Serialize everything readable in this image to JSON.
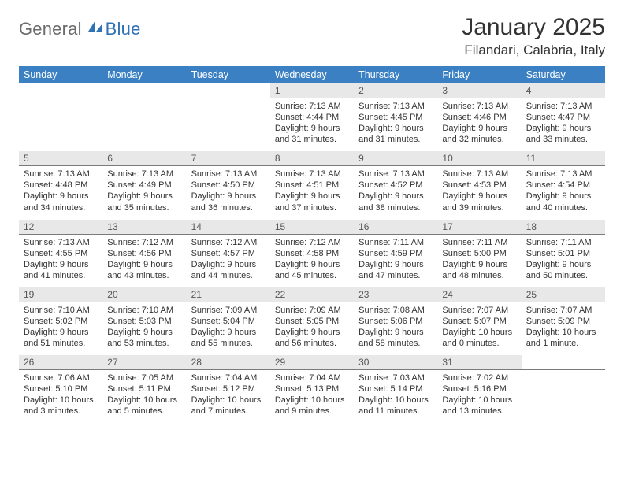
{
  "logo": {
    "general": "General",
    "blue": "Blue"
  },
  "title": "January 2025",
  "location": "Filandari, Calabria, Italy",
  "colors": {
    "header_blue": "#3a80c3",
    "daynum_bg": "#e8e8e8",
    "text": "#333333",
    "logo_gray": "#6b6b6b",
    "logo_blue": "#2f72b6",
    "divider": "#7a7a7a"
  },
  "day_names": [
    "Sunday",
    "Monday",
    "Tuesday",
    "Wednesday",
    "Thursday",
    "Friday",
    "Saturday"
  ],
  "weeks": [
    [
      null,
      null,
      null,
      {
        "n": "1",
        "sr": "Sunrise: 7:13 AM",
        "ss": "Sunset: 4:44 PM",
        "dl": "Daylight: 9 hours and 31 minutes."
      },
      {
        "n": "2",
        "sr": "Sunrise: 7:13 AM",
        "ss": "Sunset: 4:45 PM",
        "dl": "Daylight: 9 hours and 31 minutes."
      },
      {
        "n": "3",
        "sr": "Sunrise: 7:13 AM",
        "ss": "Sunset: 4:46 PM",
        "dl": "Daylight: 9 hours and 32 minutes."
      },
      {
        "n": "4",
        "sr": "Sunrise: 7:13 AM",
        "ss": "Sunset: 4:47 PM",
        "dl": "Daylight: 9 hours and 33 minutes."
      }
    ],
    [
      {
        "n": "5",
        "sr": "Sunrise: 7:13 AM",
        "ss": "Sunset: 4:48 PM",
        "dl": "Daylight: 9 hours and 34 minutes."
      },
      {
        "n": "6",
        "sr": "Sunrise: 7:13 AM",
        "ss": "Sunset: 4:49 PM",
        "dl": "Daylight: 9 hours and 35 minutes."
      },
      {
        "n": "7",
        "sr": "Sunrise: 7:13 AM",
        "ss": "Sunset: 4:50 PM",
        "dl": "Daylight: 9 hours and 36 minutes."
      },
      {
        "n": "8",
        "sr": "Sunrise: 7:13 AM",
        "ss": "Sunset: 4:51 PM",
        "dl": "Daylight: 9 hours and 37 minutes."
      },
      {
        "n": "9",
        "sr": "Sunrise: 7:13 AM",
        "ss": "Sunset: 4:52 PM",
        "dl": "Daylight: 9 hours and 38 minutes."
      },
      {
        "n": "10",
        "sr": "Sunrise: 7:13 AM",
        "ss": "Sunset: 4:53 PM",
        "dl": "Daylight: 9 hours and 39 minutes."
      },
      {
        "n": "11",
        "sr": "Sunrise: 7:13 AM",
        "ss": "Sunset: 4:54 PM",
        "dl": "Daylight: 9 hours and 40 minutes."
      }
    ],
    [
      {
        "n": "12",
        "sr": "Sunrise: 7:13 AM",
        "ss": "Sunset: 4:55 PM",
        "dl": "Daylight: 9 hours and 41 minutes."
      },
      {
        "n": "13",
        "sr": "Sunrise: 7:12 AM",
        "ss": "Sunset: 4:56 PM",
        "dl": "Daylight: 9 hours and 43 minutes."
      },
      {
        "n": "14",
        "sr": "Sunrise: 7:12 AM",
        "ss": "Sunset: 4:57 PM",
        "dl": "Daylight: 9 hours and 44 minutes."
      },
      {
        "n": "15",
        "sr": "Sunrise: 7:12 AM",
        "ss": "Sunset: 4:58 PM",
        "dl": "Daylight: 9 hours and 45 minutes."
      },
      {
        "n": "16",
        "sr": "Sunrise: 7:11 AM",
        "ss": "Sunset: 4:59 PM",
        "dl": "Daylight: 9 hours and 47 minutes."
      },
      {
        "n": "17",
        "sr": "Sunrise: 7:11 AM",
        "ss": "Sunset: 5:00 PM",
        "dl": "Daylight: 9 hours and 48 minutes."
      },
      {
        "n": "18",
        "sr": "Sunrise: 7:11 AM",
        "ss": "Sunset: 5:01 PM",
        "dl": "Daylight: 9 hours and 50 minutes."
      }
    ],
    [
      {
        "n": "19",
        "sr": "Sunrise: 7:10 AM",
        "ss": "Sunset: 5:02 PM",
        "dl": "Daylight: 9 hours and 51 minutes."
      },
      {
        "n": "20",
        "sr": "Sunrise: 7:10 AM",
        "ss": "Sunset: 5:03 PM",
        "dl": "Daylight: 9 hours and 53 minutes."
      },
      {
        "n": "21",
        "sr": "Sunrise: 7:09 AM",
        "ss": "Sunset: 5:04 PM",
        "dl": "Daylight: 9 hours and 55 minutes."
      },
      {
        "n": "22",
        "sr": "Sunrise: 7:09 AM",
        "ss": "Sunset: 5:05 PM",
        "dl": "Daylight: 9 hours and 56 minutes."
      },
      {
        "n": "23",
        "sr": "Sunrise: 7:08 AM",
        "ss": "Sunset: 5:06 PM",
        "dl": "Daylight: 9 hours and 58 minutes."
      },
      {
        "n": "24",
        "sr": "Sunrise: 7:07 AM",
        "ss": "Sunset: 5:07 PM",
        "dl": "Daylight: 10 hours and 0 minutes."
      },
      {
        "n": "25",
        "sr": "Sunrise: 7:07 AM",
        "ss": "Sunset: 5:09 PM",
        "dl": "Daylight: 10 hours and 1 minute."
      }
    ],
    [
      {
        "n": "26",
        "sr": "Sunrise: 7:06 AM",
        "ss": "Sunset: 5:10 PM",
        "dl": "Daylight: 10 hours and 3 minutes."
      },
      {
        "n": "27",
        "sr": "Sunrise: 7:05 AM",
        "ss": "Sunset: 5:11 PM",
        "dl": "Daylight: 10 hours and 5 minutes."
      },
      {
        "n": "28",
        "sr": "Sunrise: 7:04 AM",
        "ss": "Sunset: 5:12 PM",
        "dl": "Daylight: 10 hours and 7 minutes."
      },
      {
        "n": "29",
        "sr": "Sunrise: 7:04 AM",
        "ss": "Sunset: 5:13 PM",
        "dl": "Daylight: 10 hours and 9 minutes."
      },
      {
        "n": "30",
        "sr": "Sunrise: 7:03 AM",
        "ss": "Sunset: 5:14 PM",
        "dl": "Daylight: 10 hours and 11 minutes."
      },
      {
        "n": "31",
        "sr": "Sunrise: 7:02 AM",
        "ss": "Sunset: 5:16 PM",
        "dl": "Daylight: 10 hours and 13 minutes."
      },
      null
    ]
  ]
}
